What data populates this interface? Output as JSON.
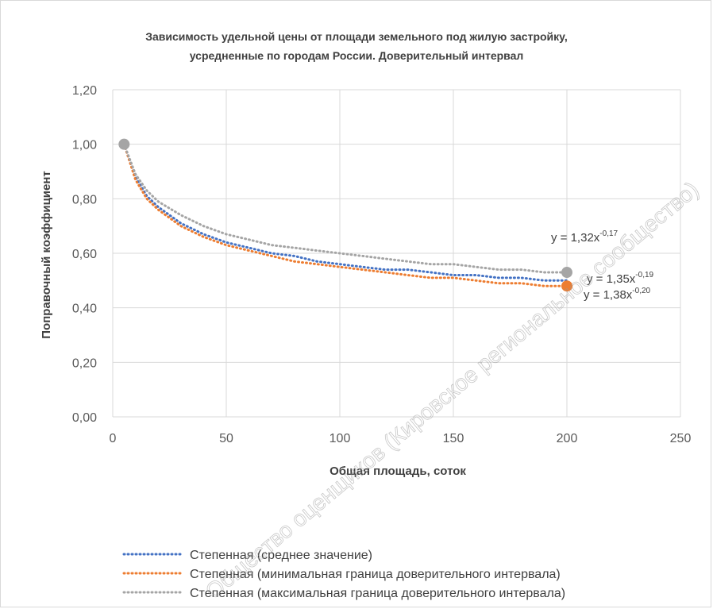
{
  "chart_data": {
    "type": "line",
    "title_lines": [
      "Зависимость удельной цены от площади земельного под жилую застройку,",
      "усредненные по городам России. Доверительный интервал"
    ],
    "xlabel": "Общая площадь, соток",
    "ylabel": "Поправочный коэффициент",
    "xlim": [
      0,
      250
    ],
    "ylim": [
      0,
      1.2
    ],
    "x_ticks": [
      0,
      50,
      100,
      150,
      200,
      250
    ],
    "x_tick_labels": [
      "0",
      "50",
      "100",
      "150",
      "200",
      "250"
    ],
    "y_ticks": [
      0,
      0.2,
      0.4,
      0.6,
      0.8,
      1.0,
      1.2
    ],
    "y_tick_labels": [
      "0,00",
      "0,20",
      "0,40",
      "0,60",
      "0,80",
      "1,00",
      "1,20"
    ],
    "grid": true,
    "legend_position": "bottom-left",
    "series": [
      {
        "name": "Степенная (среднее значение)",
        "color": "#4472c4",
        "style": "dotted",
        "x": [
          5,
          10,
          15,
          20,
          30,
          40,
          50,
          60,
          70,
          80,
          90,
          100,
          110,
          120,
          130,
          140,
          150,
          160,
          170,
          180,
          190,
          200
        ],
        "y": [
          1.0,
          0.88,
          0.81,
          0.77,
          0.71,
          0.67,
          0.64,
          0.62,
          0.6,
          0.59,
          0.57,
          0.56,
          0.55,
          0.54,
          0.54,
          0.53,
          0.52,
          0.52,
          0.51,
          0.51,
          0.5,
          0.5
        ],
        "equation": {
          "base": "y = 1,35x",
          "exp": "-0,19"
        }
      },
      {
        "name": "Степенная (минимальная граница доверительного интервала)",
        "color": "#ed7d31",
        "style": "dotted",
        "x": [
          5,
          10,
          15,
          20,
          30,
          40,
          50,
          60,
          70,
          80,
          90,
          100,
          110,
          120,
          130,
          140,
          150,
          160,
          170,
          180,
          190,
          200
        ],
        "y": [
          1.0,
          0.87,
          0.8,
          0.76,
          0.7,
          0.66,
          0.63,
          0.61,
          0.59,
          0.57,
          0.56,
          0.55,
          0.54,
          0.53,
          0.52,
          0.51,
          0.51,
          0.5,
          0.49,
          0.49,
          0.48,
          0.48
        ],
        "equation": {
          "base": "y = 1,38x",
          "exp": "-0,20"
        }
      },
      {
        "name": "Степенная (максимальная граница доверительного интервала)",
        "color": "#a5a5a5",
        "style": "dotted",
        "x": [
          5,
          10,
          15,
          20,
          30,
          40,
          50,
          60,
          70,
          80,
          90,
          100,
          110,
          120,
          130,
          140,
          150,
          160,
          170,
          180,
          190,
          200
        ],
        "y": [
          1.0,
          0.89,
          0.83,
          0.79,
          0.74,
          0.7,
          0.67,
          0.65,
          0.63,
          0.62,
          0.61,
          0.6,
          0.59,
          0.58,
          0.57,
          0.56,
          0.56,
          0.55,
          0.54,
          0.54,
          0.53,
          0.53
        ],
        "equation": {
          "base": "y = 1,32x",
          "exp": "-0,17"
        }
      }
    ],
    "markers": [
      {
        "x": 5,
        "y": 1.0,
        "color": "#a5a5a5"
      },
      {
        "x": 200,
        "y": 0.53,
        "color": "#a5a5a5"
      },
      {
        "x": 200,
        "y": 0.48,
        "color": "#ed7d31"
      }
    ]
  },
  "watermark": {
    "text": "Общество оценщиков (Кировское региональное сообщество)"
  }
}
